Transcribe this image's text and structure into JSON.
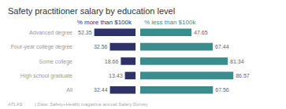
{
  "chart_data": [
    {
      "type": "bar",
      "title": "Safety practitioner salary by education level",
      "subtitle": "% more than $100k",
      "categories": [
        "Advanced degree",
        "Four-year college degree",
        "Some college",
        "High school graduate",
        "All"
      ],
      "values": [
        52.35,
        32.56,
        18.66,
        13.43,
        32.44
      ],
      "color": "#2d3268",
      "orientation": "horizontal",
      "xlim": [
        0,
        60
      ],
      "data_labels": true,
      "grid": false,
      "tick_labels": "y",
      "annotations": [
        "ATLAS",
        "| Data: Safety+Health magazine annual Salary Survey"
      ]
    },
    {
      "type": "bar",
      "subtitle": "% less than $100k",
      "categories": [
        "Advanced degree",
        "Four-year college degree",
        "Some college",
        "High school graduate",
        "All"
      ],
      "values": [
        47.65,
        67.44,
        81.34,
        86.57,
        67.56
      ],
      "color": "#3b8d8d",
      "orientation": "horizontal",
      "xlim": [
        0,
        115
      ],
      "data_labels": true,
      "grid": false,
      "tick_labels": false
    }
  ]
}
